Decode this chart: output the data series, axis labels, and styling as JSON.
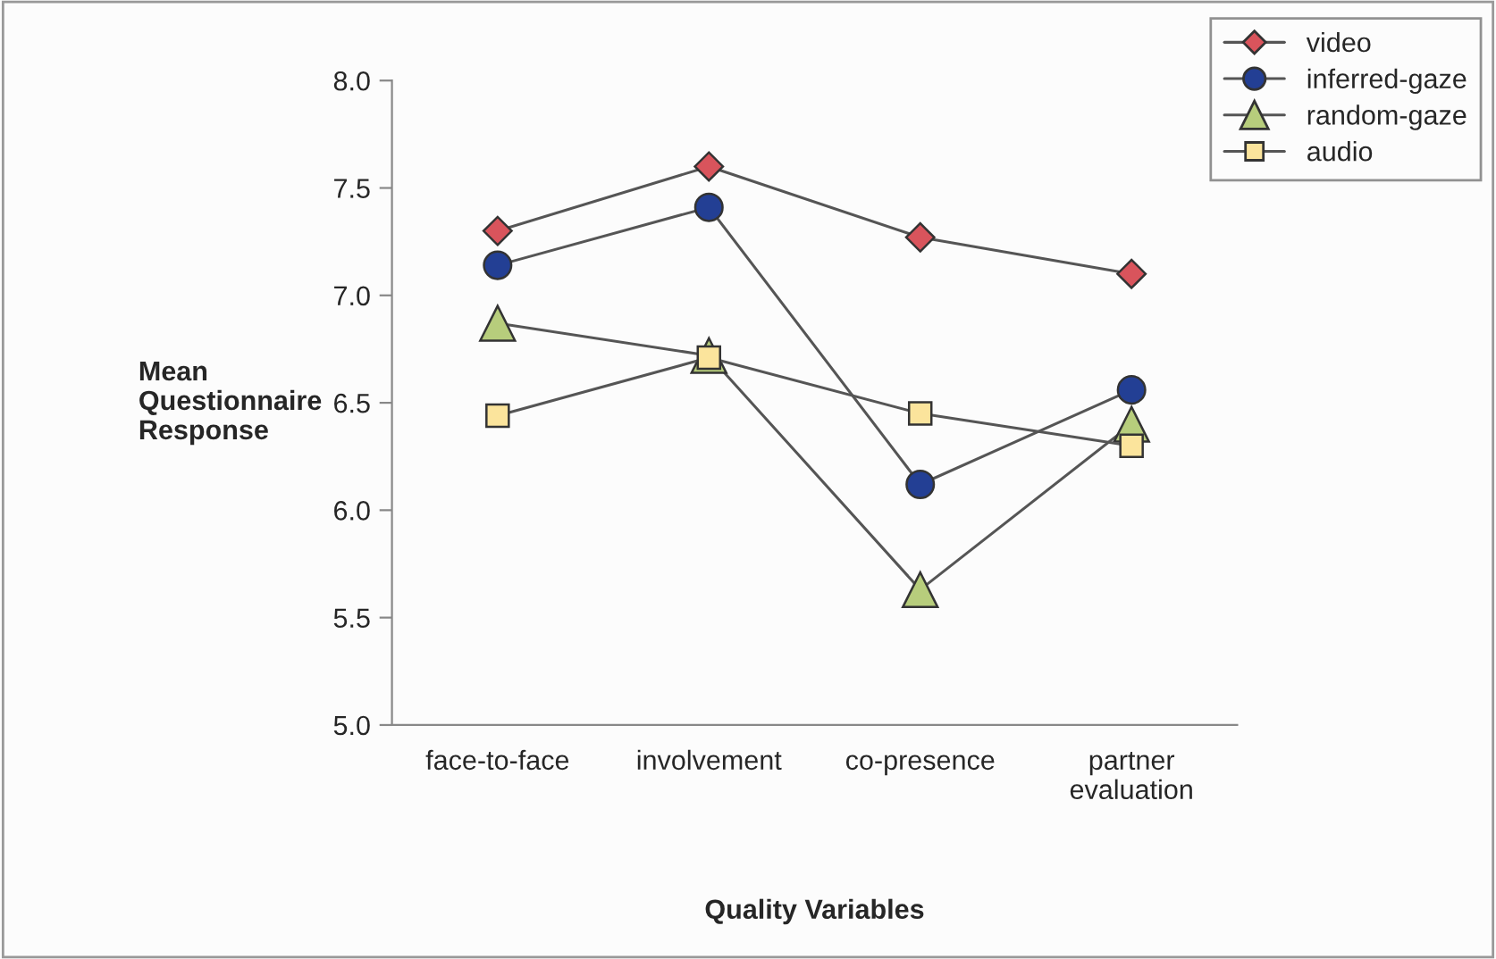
{
  "chart_data": {
    "type": "line",
    "xlabel": "Quality Variables",
    "ylabel": "Mean\nQuestionnaire\nResponse",
    "categories": [
      "face-to-face",
      "involvement",
      "co-presence",
      "partner\nevaluation"
    ],
    "series": [
      {
        "name": "video",
        "color": "#d9545c",
        "marker": "diamond",
        "values": [
          7.3,
          7.6,
          7.27,
          7.1
        ]
      },
      {
        "name": "inferred-gaze",
        "color": "#233f94",
        "marker": "circle",
        "values": [
          7.14,
          7.41,
          6.12,
          6.56
        ]
      },
      {
        "name": "random-gaze",
        "color": "#b7cd7c",
        "marker": "triangle",
        "values": [
          6.87,
          6.72,
          5.63,
          6.4
        ]
      },
      {
        "name": "audio",
        "color": "#fbe49c",
        "marker": "square",
        "values": [
          6.44,
          6.71,
          6.45,
          6.3
        ]
      }
    ],
    "ylim": [
      5.0,
      8.0
    ],
    "yticks": [
      {
        "value": 5,
        "label": "5.0"
      },
      {
        "value": 5.5,
        "label": "5.5"
      },
      {
        "value": 6,
        "label": "6.0"
      },
      {
        "value": 6.5,
        "label": "6.5"
      },
      {
        "value": 7,
        "label": "7.0"
      },
      {
        "value": 7.5,
        "label": "7.5"
      },
      {
        "value": 8,
        "label": "8.0"
      }
    ],
    "grid": false,
    "legend": "top right",
    "line_style": "solid"
  }
}
